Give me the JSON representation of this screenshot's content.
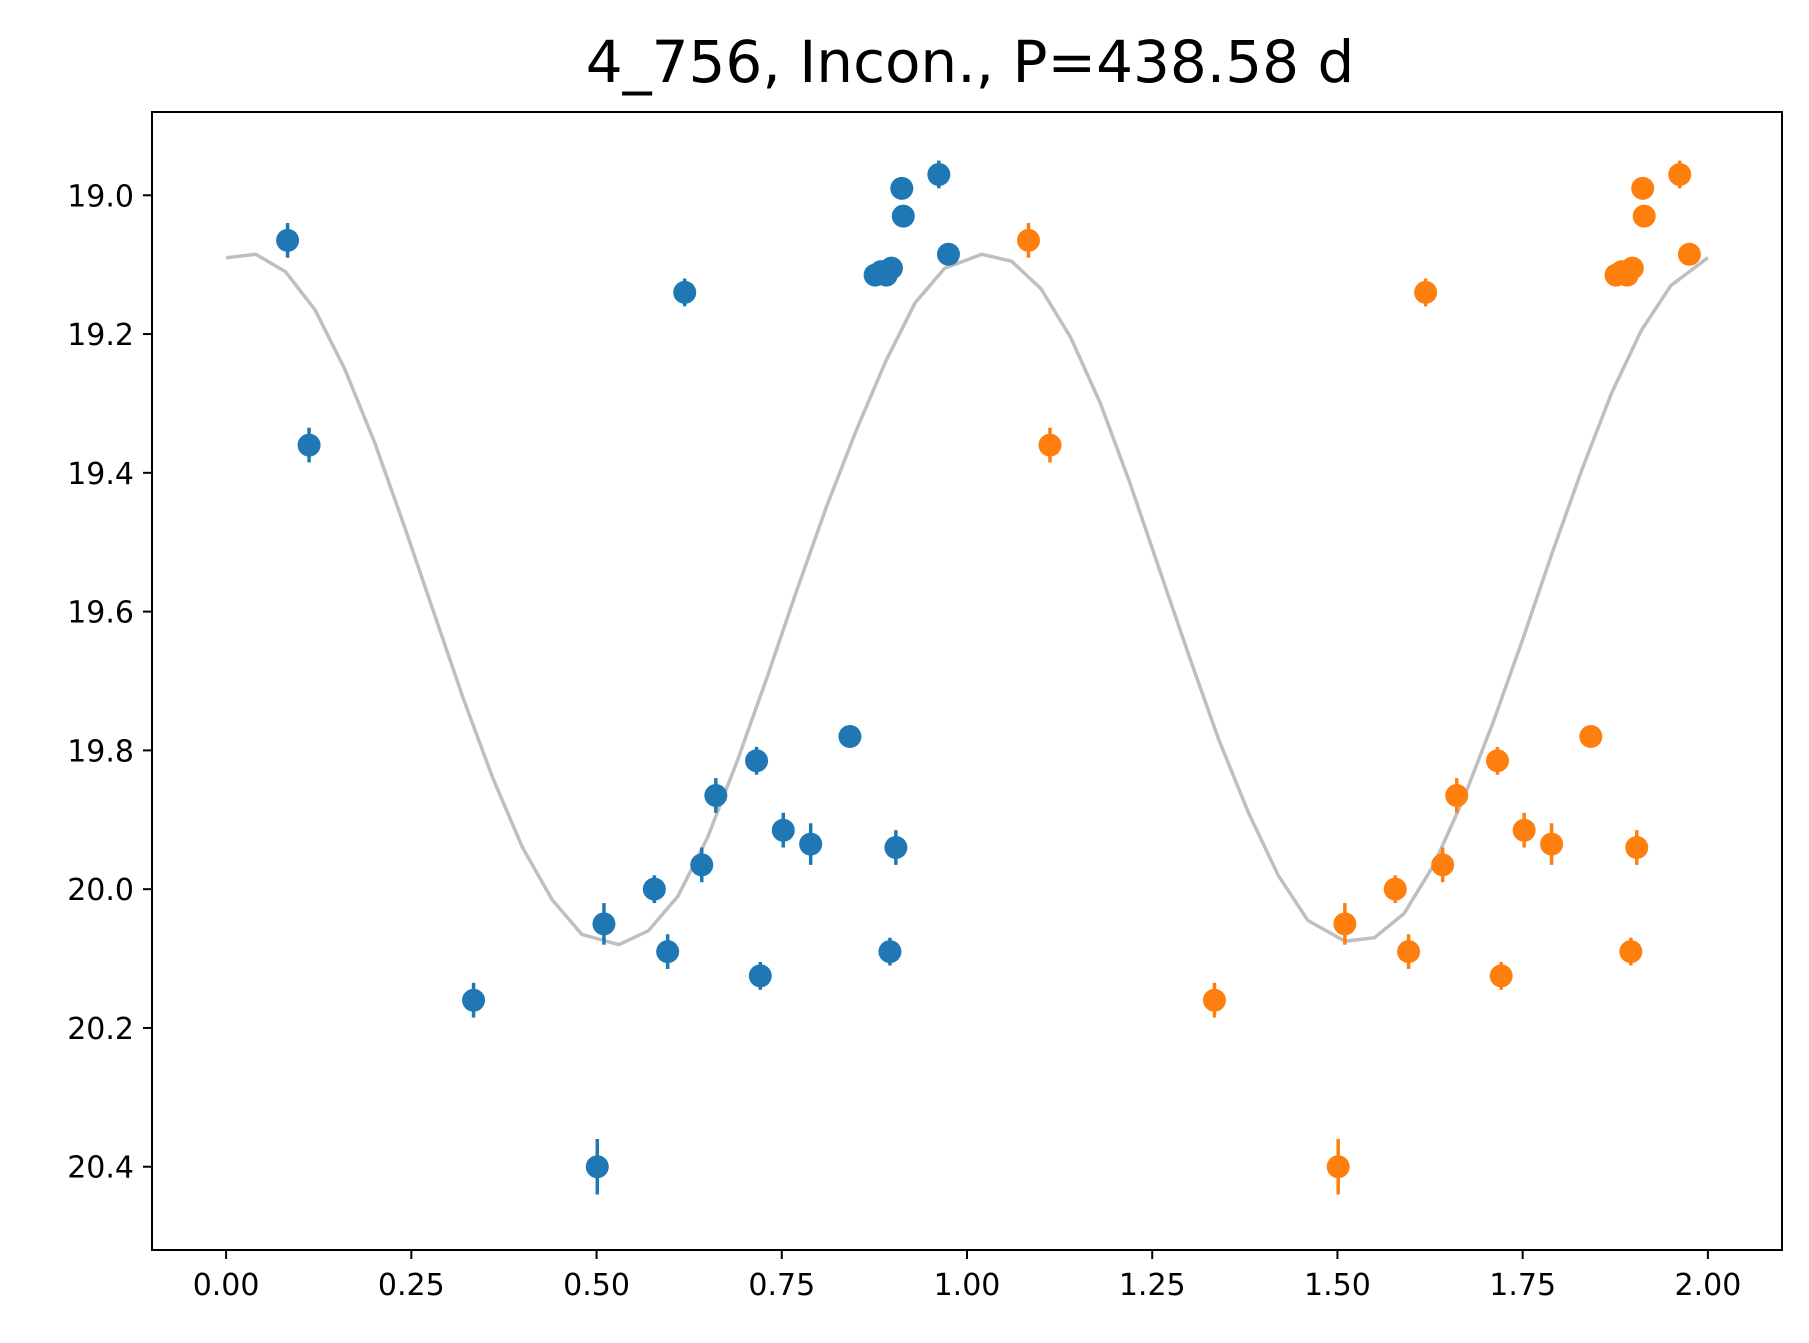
{
  "chart_data": {
    "type": "scatter",
    "title": "4_756, Incon., P=438.58 d",
    "xlabel": "",
    "ylabel": "",
    "xlim": [
      -0.1,
      2.1
    ],
    "ylim": [
      20.52,
      18.88
    ],
    "y_inverted": true,
    "grid": false,
    "legend": "none",
    "x_ticks": [
      "0.00",
      "0.25",
      "0.50",
      "0.75",
      "1.00",
      "1.25",
      "1.50",
      "1.75",
      "2.00"
    ],
    "y_ticks": [
      "19.0",
      "19.2",
      "19.4",
      "19.6",
      "19.8",
      "20.0",
      "20.2",
      "20.4"
    ],
    "colors": {
      "phase_1": "#1f77b4",
      "phase_2": "#ff7f0e",
      "model": "#bfbfbf",
      "axes": "#000000"
    },
    "series": [
      {
        "type": "errorbar",
        "color": "#1f77b4",
        "x": [
          0.083,
          0.112,
          0.334,
          0.501,
          0.51,
          0.578,
          0.596,
          0.619,
          0.642,
          0.661,
          0.716,
          0.721,
          0.752,
          0.789,
          0.842,
          0.876,
          0.884,
          0.891,
          0.898,
          0.896,
          0.904,
          0.912,
          0.914,
          0.962,
          0.975
        ],
        "y": [
          19.065,
          19.36,
          20.16,
          20.4,
          20.05,
          20.0,
          20.09,
          19.14,
          19.965,
          19.865,
          19.815,
          20.125,
          19.915,
          19.935,
          19.78,
          19.115,
          19.11,
          19.115,
          19.105,
          20.09,
          19.94,
          18.99,
          19.03,
          18.97,
          19.085
        ],
        "yerr": [
          0.025,
          0.025,
          0.025,
          0.04,
          0.03,
          0.02,
          0.025,
          0.02,
          0.025,
          0.025,
          0.02,
          0.02,
          0.025,
          0.03,
          0.01,
          0.01,
          0.01,
          0.015,
          0.01,
          0.02,
          0.025,
          0.01,
          0.01,
          0.02,
          0.01
        ]
      },
      {
        "type": "errorbar",
        "color": "#ff7f0e",
        "x": [
          1.083,
          1.112,
          1.334,
          1.501,
          1.51,
          1.578,
          1.596,
          1.619,
          1.642,
          1.661,
          1.716,
          1.721,
          1.752,
          1.789,
          1.842,
          1.876,
          1.884,
          1.891,
          1.898,
          1.896,
          1.904,
          1.912,
          1.914,
          1.962,
          1.975
        ],
        "y": [
          19.065,
          19.36,
          20.16,
          20.4,
          20.05,
          20.0,
          20.09,
          19.14,
          19.965,
          19.865,
          19.815,
          20.125,
          19.915,
          19.935,
          19.78,
          19.115,
          19.11,
          19.115,
          19.105,
          20.09,
          19.94,
          18.99,
          19.03,
          18.97,
          19.085
        ],
        "yerr": [
          0.025,
          0.025,
          0.025,
          0.04,
          0.03,
          0.02,
          0.025,
          0.02,
          0.025,
          0.025,
          0.02,
          0.02,
          0.025,
          0.03,
          0.01,
          0.01,
          0.01,
          0.015,
          0.01,
          0.02,
          0.025,
          0.01,
          0.01,
          0.02,
          0.01
        ]
      },
      {
        "type": "line",
        "color": "#bfbfbf",
        "x": [
          0.0,
          0.04,
          0.08,
          0.12,
          0.16,
          0.2,
          0.24,
          0.28,
          0.32,
          0.36,
          0.4,
          0.44,
          0.48,
          0.53,
          0.57,
          0.61,
          0.65,
          0.69,
          0.73,
          0.77,
          0.81,
          0.85,
          0.89,
          0.93,
          0.97,
          1.02,
          1.06,
          1.1,
          1.14,
          1.18,
          1.22,
          1.26,
          1.3,
          1.34,
          1.38,
          1.42,
          1.46,
          1.51,
          1.55,
          1.59,
          1.63,
          1.67,
          1.71,
          1.75,
          1.79,
          1.83,
          1.87,
          1.91,
          1.95,
          2.0
        ],
        "y": [
          19.09,
          19.085,
          19.11,
          19.165,
          19.25,
          19.355,
          19.475,
          19.6,
          19.725,
          19.84,
          19.94,
          20.015,
          20.065,
          20.08,
          20.06,
          20.01,
          19.925,
          19.815,
          19.695,
          19.57,
          19.45,
          19.34,
          19.24,
          19.155,
          19.105,
          19.085,
          19.095,
          19.135,
          19.205,
          19.3,
          19.415,
          19.54,
          19.665,
          19.785,
          19.89,
          19.98,
          20.045,
          20.075,
          20.07,
          20.035,
          19.965,
          19.87,
          19.76,
          19.64,
          19.515,
          19.395,
          19.285,
          19.195,
          19.13,
          19.09
        ]
      }
    ]
  }
}
